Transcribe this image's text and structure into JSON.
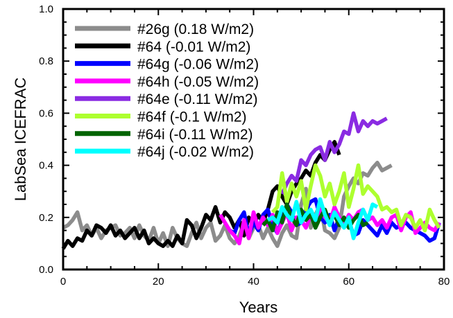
{
  "chart_data": {
    "type": "line",
    "xlabel": "Years",
    "ylabel": "LabSea ICEFRAC",
    "xlim": [
      0,
      80
    ],
    "ylim": [
      0,
      1
    ],
    "xticks": [
      0,
      20,
      40,
      60,
      80
    ],
    "yticks": [
      0.0,
      0.2,
      0.4,
      0.6,
      0.8,
      1.0
    ],
    "ytick_labels": [
      "0.0",
      "0.2",
      "0.4",
      "0.6",
      "0.8",
      "1.0"
    ],
    "grid": false,
    "legend_position": "top-left",
    "series": [
      {
        "name": "#26g (0.18 W/m2)",
        "color": "#8c8c8c",
        "x": [
          0,
          1,
          2,
          3,
          4,
          5,
          6,
          7,
          8,
          9,
          10,
          11,
          12,
          13,
          14,
          15,
          16,
          17,
          18,
          19,
          20,
          21,
          22,
          23,
          24,
          25,
          26,
          27,
          28,
          29,
          30,
          31,
          32,
          33,
          34,
          35,
          36,
          37,
          38,
          39,
          40,
          41,
          42,
          43,
          44,
          45,
          46,
          47,
          48,
          49,
          50,
          51,
          52,
          53,
          54,
          55,
          56,
          57,
          58,
          59,
          60,
          61,
          62,
          63,
          64,
          65,
          66,
          67,
          68,
          69
        ],
        "y": [
          0.16,
          0.17,
          0.19,
          0.22,
          0.15,
          0.17,
          0.13,
          0.16,
          0.12,
          0.15,
          0.16,
          0.17,
          0.13,
          0.14,
          0.16,
          0.12,
          0.17,
          0.13,
          0.11,
          0.16,
          0.1,
          0.14,
          0.09,
          0.16,
          0.12,
          0.1,
          0.09,
          0.14,
          0.18,
          0.12,
          0.16,
          0.18,
          0.11,
          0.13,
          0.17,
          0.12,
          0.1,
          0.13,
          0.18,
          0.12,
          0.16,
          0.17,
          0.12,
          0.16,
          0.12,
          0.09,
          0.14,
          0.17,
          0.13,
          0.12,
          0.25,
          0.31,
          0.16,
          0.21,
          0.25,
          0.15,
          0.14,
          0.12,
          0.16,
          0.28,
          0.32,
          0.35,
          0.33,
          0.37,
          0.36,
          0.39,
          0.41,
          0.38,
          0.39,
          0.4
        ]
      },
      {
        "name": "#64 (-0.01 W/m2)",
        "color": "#000000",
        "x": [
          0,
          1,
          2,
          3,
          4,
          5,
          6,
          7,
          8,
          9,
          10,
          11,
          12,
          13,
          14,
          15,
          16,
          17,
          18,
          19,
          20,
          21,
          22,
          23,
          24,
          25,
          26,
          27,
          28,
          29,
          30,
          31,
          32,
          33,
          34,
          35,
          36,
          37,
          38,
          39,
          40,
          41,
          42,
          43,
          44,
          45,
          46,
          47,
          48,
          49,
          50,
          51,
          52,
          53,
          54,
          55,
          56,
          57,
          58
        ],
        "y": [
          0.08,
          0.11,
          0.09,
          0.12,
          0.11,
          0.15,
          0.13,
          0.17,
          0.16,
          0.14,
          0.17,
          0.13,
          0.15,
          0.12,
          0.14,
          0.16,
          0.12,
          0.15,
          0.1,
          0.12,
          0.1,
          0.09,
          0.11,
          0.09,
          0.13,
          0.1,
          0.19,
          0.17,
          0.12,
          0.16,
          0.21,
          0.19,
          0.24,
          0.18,
          0.22,
          0.2,
          0.16,
          0.19,
          0.13,
          0.2,
          0.17,
          0.21,
          0.18,
          0.23,
          0.3,
          0.32,
          0.28,
          0.25,
          0.3,
          0.33,
          0.35,
          0.38,
          0.36,
          0.41,
          0.44,
          0.42,
          0.46,
          0.49,
          0.44
        ]
      },
      {
        "name": "#64g (-0.06 W/m2)",
        "color": "#0000ff",
        "x": [
          35,
          36,
          37,
          38,
          39,
          40,
          41,
          42,
          43,
          44,
          45,
          46,
          47,
          48,
          49,
          50,
          51,
          52,
          53,
          54,
          55,
          56,
          57,
          58,
          59,
          60,
          61,
          62,
          63,
          64,
          65,
          66,
          67,
          68,
          69,
          70,
          71,
          72,
          73,
          74,
          75,
          76,
          77,
          78,
          79
        ],
        "y": [
          0.15,
          0.14,
          0.19,
          0.22,
          0.13,
          0.18,
          0.15,
          0.21,
          0.23,
          0.17,
          0.14,
          0.19,
          0.25,
          0.22,
          0.17,
          0.18,
          0.23,
          0.26,
          0.27,
          0.2,
          0.18,
          0.21,
          0.15,
          0.2,
          0.17,
          0.19,
          0.13,
          0.14,
          0.19,
          0.17,
          0.15,
          0.13,
          0.17,
          0.14,
          0.18,
          0.16,
          0.17,
          0.18,
          0.16,
          0.15,
          0.14,
          0.13,
          0.11,
          0.12,
          0.18
        ]
      },
      {
        "name": "#64h (-0.05 W/m2)",
        "color": "#ff00ff",
        "x": [
          33,
          34,
          35,
          36,
          37,
          38,
          39,
          40,
          41,
          42,
          43,
          44,
          45,
          46,
          47,
          48,
          49,
          50,
          51,
          52,
          53,
          54,
          55,
          56,
          57,
          58,
          59,
          60,
          61,
          62,
          63,
          64,
          65,
          66,
          67,
          68,
          69,
          70,
          71,
          72,
          73,
          74,
          75,
          76,
          77,
          78,
          79
        ],
        "y": [
          0.21,
          0.18,
          0.15,
          0.13,
          0.1,
          0.19,
          0.12,
          0.22,
          0.16,
          0.2,
          0.17,
          0.21,
          0.14,
          0.18,
          0.22,
          0.15,
          0.2,
          0.19,
          0.16,
          0.21,
          0.17,
          0.23,
          0.2,
          0.18,
          0.24,
          0.2,
          0.17,
          0.21,
          0.19,
          0.22,
          0.23,
          0.19,
          0.2,
          0.17,
          0.19,
          0.16,
          0.2,
          0.21,
          0.15,
          0.2,
          0.22,
          0.14,
          0.16,
          0.18,
          0.16,
          0.15,
          0.18
        ]
      },
      {
        "name": "#64e (-0.11 W/m2)",
        "color": "#8a2be2",
        "x": [
          46,
          47,
          48,
          49,
          50,
          51,
          52,
          53,
          54,
          55,
          56,
          57,
          58,
          59,
          60,
          61,
          62,
          63,
          64,
          65,
          66,
          67,
          68
        ],
        "y": [
          0.29,
          0.33,
          0.36,
          0.34,
          0.42,
          0.4,
          0.44,
          0.46,
          0.47,
          0.42,
          0.49,
          0.45,
          0.48,
          0.53,
          0.52,
          0.6,
          0.53,
          0.57,
          0.55,
          0.57,
          0.56,
          0.57,
          0.58
        ]
      },
      {
        "name": "#64f (-0.1 W/m2)",
        "color": "#adff2f",
        "x": [
          44,
          45,
          46,
          47,
          48,
          49,
          50,
          51,
          52,
          53,
          54,
          55,
          56,
          57,
          58,
          59,
          60,
          61,
          62,
          63,
          64,
          65,
          66,
          67,
          68,
          69,
          70,
          71,
          72,
          73,
          74,
          75,
          76,
          77,
          78,
          79
        ],
        "y": [
          0.22,
          0.24,
          0.37,
          0.26,
          0.33,
          0.28,
          0.34,
          0.23,
          0.32,
          0.4,
          0.36,
          0.28,
          0.33,
          0.25,
          0.3,
          0.37,
          0.24,
          0.31,
          0.4,
          0.29,
          0.32,
          0.3,
          0.28,
          0.23,
          0.24,
          0.22,
          0.23,
          0.17,
          0.21,
          0.2,
          0.16,
          0.19,
          0.15,
          0.23,
          0.19,
          0.16
        ]
      },
      {
        "name": "#64i (-0.11 W/m2)",
        "color": "#006400",
        "x": [
          42,
          43,
          44,
          45,
          46,
          47,
          48,
          49,
          50,
          51,
          52,
          53,
          54,
          55,
          56,
          57,
          58,
          59,
          60,
          61,
          62,
          63,
          64
        ],
        "y": [
          0.17,
          0.19,
          0.15,
          0.22,
          0.18,
          0.25,
          0.2,
          0.17,
          0.23,
          0.19,
          0.21,
          0.16,
          0.2,
          0.23,
          0.18,
          0.21,
          0.17,
          0.2,
          0.16,
          0.19,
          0.21,
          0.17,
          0.18
        ]
      },
      {
        "name": "#64j (-0.02 W/m2)",
        "color": "#00ffff",
        "x": [
          43,
          44,
          45,
          46,
          47,
          48,
          49,
          50,
          51,
          52,
          53,
          54,
          55,
          56,
          57,
          58,
          59,
          60,
          61,
          62,
          63,
          64,
          65,
          66
        ],
        "y": [
          0.19,
          0.2,
          0.18,
          0.24,
          0.21,
          0.19,
          0.26,
          0.18,
          0.21,
          0.23,
          0.19,
          0.27,
          0.21,
          0.17,
          0.22,
          0.19,
          0.16,
          0.2,
          0.12,
          0.18,
          0.23,
          0.19,
          0.25,
          0.24
        ]
      }
    ]
  }
}
